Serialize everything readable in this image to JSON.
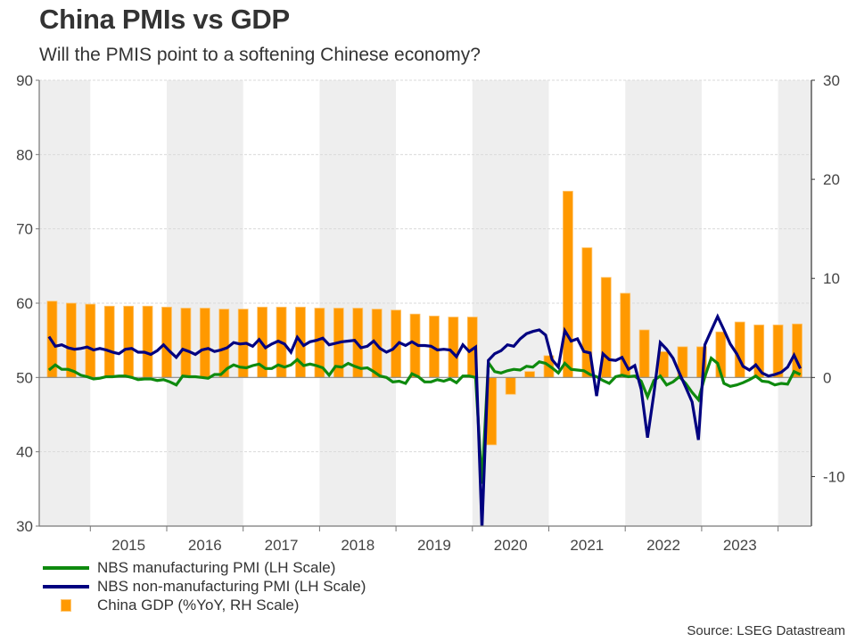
{
  "header": {
    "title": "China PMIs vs GDP",
    "subtitle": "Will the PMIS point to a softening Chinese economy?"
  },
  "source": "Source: LSEG Datastream",
  "chart_data": {
    "type": "bar+line",
    "title": "China PMIs vs GDP",
    "subtitle": "Will the PMIS point to a softening Chinese economy?",
    "x_axis": {
      "start": "2014-06",
      "end": "2024-04",
      "tick_labels": [
        "2015",
        "2016",
        "2017",
        "2018",
        "2019",
        "2020",
        "2021",
        "2022",
        "2023"
      ],
      "shaded_years": [
        "2014",
        "2016",
        "2018",
        "2020",
        "2022",
        "2024"
      ]
    },
    "y_left": {
      "label": "LH Scale",
      "ylim": [
        30,
        90
      ],
      "ticks": [
        30,
        40,
        50,
        60,
        70,
        80,
        90
      ],
      "grid": true
    },
    "y_right": {
      "label": "RH Scale",
      "ylim": [
        -15,
        30
      ],
      "ticks": [
        -10,
        0,
        10,
        20,
        30
      ]
    },
    "legend": [
      {
        "name": "NBS manufacturing PMI (LH Scale)",
        "color": "#0e8a0e",
        "kind": "line"
      },
      {
        "name": "NBS non-manufacturing PMI (LH Scale)",
        "color": "#000080",
        "kind": "line"
      },
      {
        "name": "China GDP (%YoY, RH Scale)",
        "color": "#ff9900",
        "kind": "bar"
      }
    ],
    "legend_position": "bottom-left",
    "series": [
      {
        "name": "NBS manufacturing PMI (LH Scale)",
        "axis": "left",
        "frequency": "monthly",
        "start": "2014-06",
        "color": "#0e8a0e",
        "values": [
          51.0,
          51.7,
          51.1,
          51.1,
          50.8,
          50.3,
          50.1,
          49.8,
          49.9,
          50.1,
          50.1,
          50.2,
          50.2,
          50.0,
          49.7,
          49.8,
          49.8,
          49.6,
          49.7,
          49.4,
          49.0,
          50.2,
          50.1,
          50.1,
          50.0,
          49.9,
          50.4,
          50.4,
          51.2,
          51.7,
          51.4,
          51.3,
          51.6,
          51.8,
          51.2,
          51.2,
          51.7,
          51.4,
          51.7,
          52.4,
          51.6,
          51.8,
          51.6,
          51.3,
          50.3,
          51.5,
          51.4,
          51.9,
          51.5,
          51.2,
          51.3,
          50.8,
          50.2,
          50.0,
          49.4,
          49.5,
          49.2,
          50.5,
          50.1,
          49.4,
          49.4,
          49.7,
          49.5,
          49.8,
          49.3,
          50.2,
          50.2,
          50.0,
          35.7,
          52.0,
          50.8,
          50.6,
          50.9,
          51.1,
          51.0,
          51.5,
          51.4,
          52.1,
          51.9,
          51.3,
          50.6,
          51.9,
          51.1,
          51.0,
          50.9,
          50.4,
          50.1,
          49.6,
          49.2,
          50.1,
          50.3,
          50.1,
          50.2,
          49.5,
          47.4,
          49.6,
          50.2,
          49.0,
          49.4,
          50.1,
          49.2,
          48.0,
          47.0,
          50.1,
          52.6,
          51.9,
          49.2,
          48.8,
          49.0,
          49.3,
          49.7,
          50.2,
          49.5,
          49.4,
          49.0,
          49.2,
          49.1,
          50.8,
          50.4
        ]
      },
      {
        "name": "NBS non-manufacturing PMI (LH Scale)",
        "axis": "left",
        "frequency": "monthly",
        "start": "2014-06",
        "color": "#000080",
        "values": [
          55.5,
          54.2,
          54.4,
          54.0,
          53.8,
          53.9,
          54.1,
          53.7,
          53.9,
          53.7,
          53.4,
          53.2,
          53.8,
          53.9,
          53.4,
          53.4,
          53.1,
          53.6,
          54.4,
          53.5,
          52.7,
          53.8,
          53.5,
          53.1,
          53.7,
          53.9,
          53.5,
          53.7,
          54.0,
          54.7,
          54.5,
          54.6,
          54.2,
          55.1,
          54.0,
          54.5,
          54.9,
          54.5,
          53.4,
          55.4,
          54.3,
          54.8,
          55.0,
          55.3,
          54.4,
          54.6,
          54.8,
          54.9,
          55.0,
          54.0,
          54.2,
          54.9,
          53.9,
          53.4,
          53.8,
          54.7,
          54.3,
          54.8,
          54.3,
          54.3,
          54.2,
          53.7,
          53.8,
          53.7,
          52.8,
          54.4,
          53.5,
          54.1,
          29.6,
          52.3,
          53.2,
          53.6,
          54.4,
          54.2,
          55.2,
          55.9,
          56.2,
          56.4,
          55.7,
          52.4,
          51.4,
          56.3,
          54.9,
          55.2,
          53.5,
          53.3,
          47.5,
          53.2,
          52.4,
          52.3,
          52.7,
          51.1,
          51.6,
          48.4,
          41.9,
          47.8,
          54.7,
          53.8,
          52.6,
          50.6,
          48.7,
          46.7,
          41.6,
          54.4,
          56.3,
          58.2,
          56.4,
          54.5,
          53.2,
          51.5,
          51.0,
          51.7,
          50.6,
          50.2,
          50.4,
          50.7,
          51.4,
          53.0,
          51.2
        ]
      },
      {
        "name": "China GDP (%YoY, RH Scale)",
        "axis": "right",
        "frequency": "quarterly",
        "start": "2014-07",
        "color": "#ff9900",
        "values": [
          7.7,
          7.5,
          7.4,
          7.2,
          7.2,
          7.2,
          7.1,
          7.0,
          7.0,
          6.9,
          6.9,
          7.1,
          7.1,
          7.1,
          7.0,
          7.0,
          7.0,
          6.9,
          6.8,
          6.4,
          6.2,
          6.1,
          6.1,
          -6.8,
          -1.7,
          0.6,
          2.2,
          18.8,
          13.1,
          10.1,
          8.5,
          4.8,
          2.6,
          3.1,
          3.1,
          4.6,
          5.6,
          5.3,
          5.3,
          5.4
        ]
      }
    ]
  }
}
